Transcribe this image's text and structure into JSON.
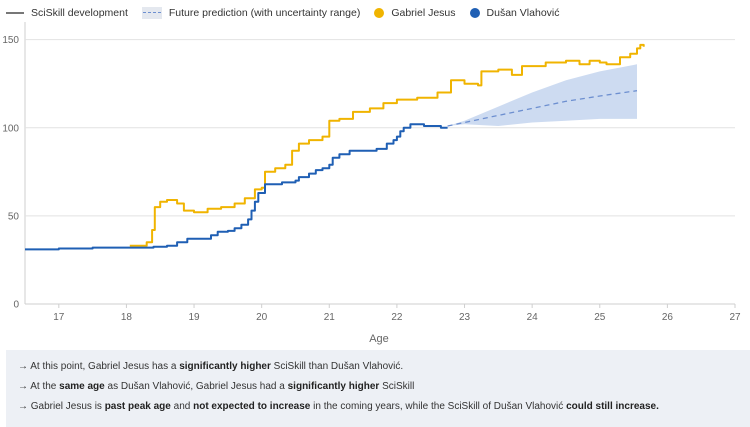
{
  "legend": {
    "development": "SciSkill development",
    "prediction": "Future prediction (with uncertainty range)",
    "player1": "Gabriel Jesus",
    "player2": "Dušan Vlahović"
  },
  "colors": {
    "player1": "#f0b400",
    "player2": "#1f5fb4",
    "prediction_band": "#c8d7ef",
    "prediction_line": "#6d8fd0",
    "grid": "#e2e2e2"
  },
  "insights": [
    [
      {
        "t": "→ At this point, Gabriel Jesus has a ",
        "b": false
      },
      {
        "t": "significantly higher",
        "b": true
      },
      {
        "t": " SciSkill than Dušan Vlahović.",
        "b": false
      }
    ],
    [
      {
        "t": "→ At the ",
        "b": false
      },
      {
        "t": "same age",
        "b": true
      },
      {
        "t": " as Dušan Vlahović, Gabriel Jesus had a ",
        "b": false
      },
      {
        "t": "significantly higher",
        "b": true
      },
      {
        "t": " SciSkill",
        "b": false
      }
    ],
    [
      {
        "t": "→ Gabriel Jesus is ",
        "b": false
      },
      {
        "t": "past peak age",
        "b": true
      },
      {
        "t": " and ",
        "b": false
      },
      {
        "t": "not expected to increase",
        "b": true
      },
      {
        "t": " in the coming years, while the SciSkill of Dušan Vlahović ",
        "b": false
      },
      {
        "t": "could still increase.",
        "b": true
      }
    ]
  ],
  "chart_data": {
    "type": "line",
    "xlabel": "Age",
    "ylabel": "",
    "xlim": [
      16.5,
      27
    ],
    "ylim": [
      0,
      160
    ],
    "xticks": [
      17,
      18,
      19,
      20,
      21,
      22,
      23,
      24,
      25,
      26,
      27
    ],
    "yticks": [
      0,
      50,
      100,
      150
    ],
    "series": [
      {
        "name": "Gabriel Jesus",
        "color": "#f0b400",
        "points": [
          [
            18.05,
            33
          ],
          [
            18.3,
            35
          ],
          [
            18.38,
            42
          ],
          [
            18.42,
            55
          ],
          [
            18.5,
            58
          ],
          [
            18.6,
            59
          ],
          [
            18.75,
            57
          ],
          [
            18.85,
            53
          ],
          [
            19.0,
            52
          ],
          [
            19.2,
            54
          ],
          [
            19.4,
            55
          ],
          [
            19.6,
            57
          ],
          [
            19.75,
            60
          ],
          [
            19.9,
            65
          ],
          [
            20.0,
            66
          ],
          [
            20.05,
            75
          ],
          [
            20.2,
            77
          ],
          [
            20.35,
            79
          ],
          [
            20.45,
            87
          ],
          [
            20.55,
            91
          ],
          [
            20.7,
            93
          ],
          [
            20.9,
            95
          ],
          [
            21.0,
            104
          ],
          [
            21.15,
            105
          ],
          [
            21.35,
            109
          ],
          [
            21.6,
            111
          ],
          [
            21.8,
            114
          ],
          [
            22.0,
            116
          ],
          [
            22.3,
            117
          ],
          [
            22.6,
            120
          ],
          [
            22.8,
            127
          ],
          [
            23.0,
            125
          ],
          [
            23.2,
            124
          ],
          [
            23.25,
            132
          ],
          [
            23.5,
            133
          ],
          [
            23.7,
            130
          ],
          [
            23.85,
            135
          ],
          [
            24.0,
            135
          ],
          [
            24.2,
            137
          ],
          [
            24.5,
            138
          ],
          [
            24.7,
            136
          ],
          [
            24.85,
            138
          ],
          [
            25.0,
            137
          ],
          [
            25.1,
            136
          ],
          [
            25.3,
            140
          ],
          [
            25.45,
            142
          ],
          [
            25.55,
            145
          ],
          [
            25.6,
            147
          ],
          [
            25.65,
            146
          ]
        ]
      },
      {
        "name": "Dušan Vlahović",
        "color": "#1f5fb4",
        "points": [
          [
            16.5,
            31
          ],
          [
            17.0,
            31.5
          ],
          [
            17.5,
            32
          ],
          [
            18.0,
            32
          ],
          [
            18.4,
            32.5
          ],
          [
            18.6,
            33
          ],
          [
            18.75,
            35
          ],
          [
            18.9,
            37
          ],
          [
            19.1,
            37
          ],
          [
            19.25,
            39
          ],
          [
            19.35,
            41
          ],
          [
            19.5,
            41.5
          ],
          [
            19.6,
            43
          ],
          [
            19.7,
            45
          ],
          [
            19.8,
            48
          ],
          [
            19.85,
            53
          ],
          [
            19.9,
            58
          ],
          [
            19.95,
            63
          ],
          [
            20.05,
            68
          ],
          [
            20.3,
            69
          ],
          [
            20.5,
            70
          ],
          [
            20.55,
            72
          ],
          [
            20.7,
            74
          ],
          [
            20.8,
            76
          ],
          [
            20.9,
            77
          ],
          [
            21.0,
            79
          ],
          [
            21.05,
            83
          ],
          [
            21.15,
            85
          ],
          [
            21.3,
            87
          ],
          [
            21.5,
            87
          ],
          [
            21.7,
            88
          ],
          [
            21.85,
            91
          ],
          [
            21.95,
            93
          ],
          [
            22.0,
            95
          ],
          [
            22.05,
            98
          ],
          [
            22.1,
            100
          ],
          [
            22.2,
            102
          ],
          [
            22.4,
            101
          ],
          [
            22.55,
            101
          ],
          [
            22.65,
            100
          ],
          [
            22.75,
            100
          ]
        ]
      }
    ],
    "prediction": {
      "name": "Future prediction (with uncertainty range)",
      "line": [
        [
          22.75,
          101
        ],
        [
          23.0,
          103
        ],
        [
          23.5,
          107
        ],
        [
          24.0,
          111
        ],
        [
          24.5,
          115
        ],
        [
          25.0,
          118
        ],
        [
          25.55,
          121
        ]
      ],
      "upper": [
        [
          22.75,
          101
        ],
        [
          23.0,
          104
        ],
        [
          23.5,
          112
        ],
        [
          24.0,
          120
        ],
        [
          24.5,
          127
        ],
        [
          25.0,
          132
        ],
        [
          25.55,
          136
        ]
      ],
      "lower": [
        [
          22.75,
          101
        ],
        [
          23.0,
          102
        ],
        [
          23.5,
          101
        ],
        [
          24.0,
          103
        ],
        [
          24.5,
          104
        ],
        [
          25.0,
          105
        ],
        [
          25.55,
          105
        ]
      ]
    }
  }
}
